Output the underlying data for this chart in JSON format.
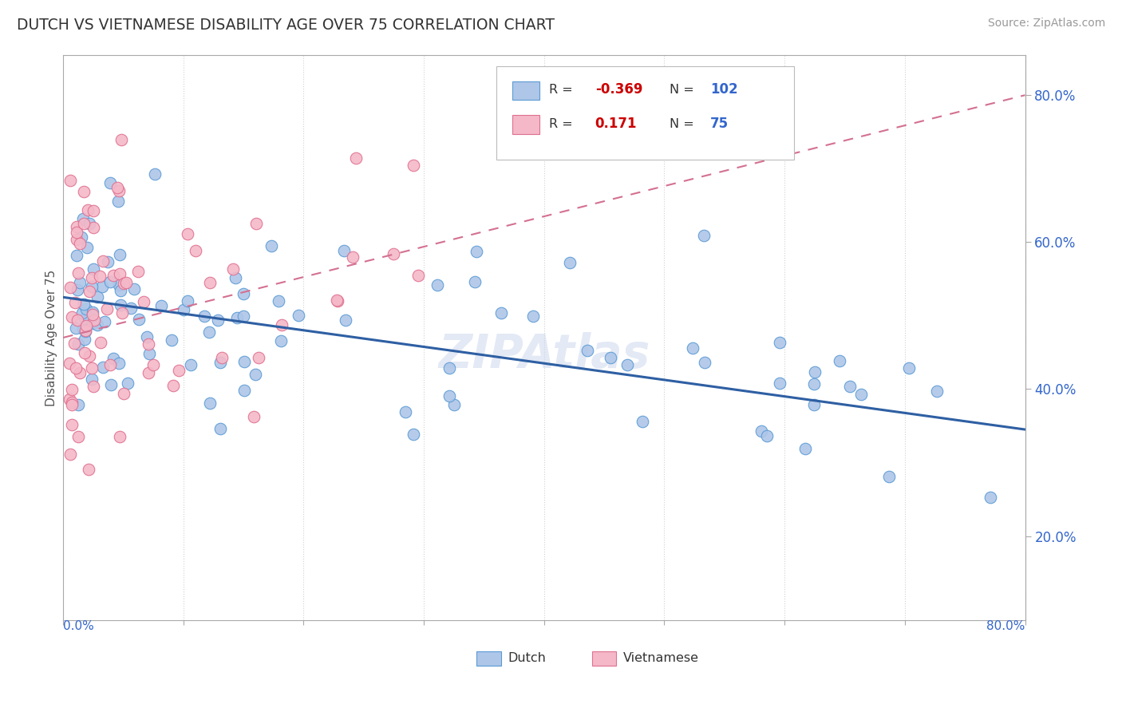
{
  "title": "DUTCH VS VIETNAMESE DISABILITY AGE OVER 75 CORRELATION CHART",
  "source": "Source: ZipAtlas.com",
  "ylabel": "Disability Age Over 75",
  "xlim": [
    0.0,
    0.8
  ],
  "ylim": [
    0.085,
    0.855
  ],
  "right_yticks": [
    0.2,
    0.4,
    0.6,
    0.8
  ],
  "right_yticklabels": [
    "20.0%",
    "40.0%",
    "60.0%",
    "80.0%"
  ],
  "dutch_color": "#aec6e8",
  "dutch_edge": "#5b9bd5",
  "viet_color": "#f4b8c8",
  "viet_edge": "#e07090",
  "dutch_line_color": "#2e5fa3",
  "viet_line_color": "#d47090",
  "dutch_R": -0.369,
  "dutch_N": 102,
  "viet_R": 0.171,
  "viet_N": 75,
  "dutch_trend_x0": 0.0,
  "dutch_trend_x1": 0.8,
  "dutch_trend_y0": 0.525,
  "dutch_trend_y1": 0.345,
  "viet_trend_x0": 0.0,
  "viet_trend_x1": 0.8,
  "viet_trend_y0": 0.47,
  "viet_trend_y1": 0.8,
  "watermark": "ZIPAtlas",
  "legend_dutch_R": "-0.369",
  "legend_dutch_N": "102",
  "legend_viet_R": "0.171",
  "legend_viet_N": "75",
  "R_color": "#cc0000",
  "N_color": "#3366cc"
}
